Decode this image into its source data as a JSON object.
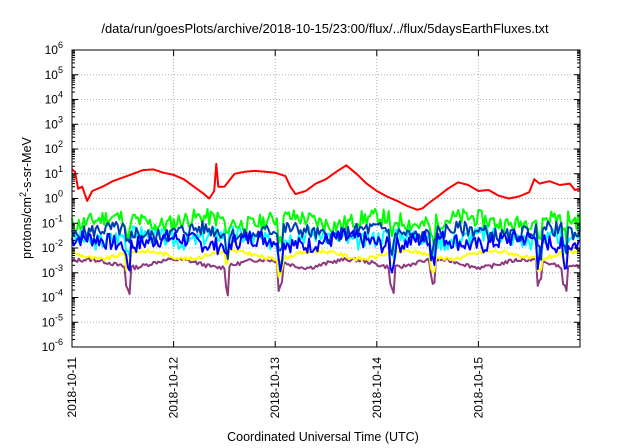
{
  "chart_data": {
    "type": "line",
    "title": "/data/run/goesPlots/archive/2018-10-15/23:00/flux/../flux/5daysEarthFluxes.txt",
    "xlabel": "Coordinated Universal Time (UTC)",
    "ylabel": {
      "pre": "protons/cm",
      "sup": "2",
      "post": "-s-sr-MeV"
    },
    "xlim": [
      "2018-10-11",
      "2018-10-16"
    ],
    "ylim": [
      1e-06,
      1000000.0
    ],
    "yscale": "log",
    "grid": true,
    "xticks": [
      "2018-10-11",
      "2018-10-12",
      "2018-10-13",
      "2018-10-14",
      "2018-10-15"
    ],
    "yticks": [
      {
        "base": "10",
        "exp": "-6"
      },
      {
        "base": "10",
        "exp": "-5"
      },
      {
        "base": "10",
        "exp": "-4"
      },
      {
        "base": "10",
        "exp": "-3"
      },
      {
        "base": "10",
        "exp": "-2"
      },
      {
        "base": "10",
        "exp": "-1"
      },
      {
        "base": "10",
        "exp": "0"
      },
      {
        "base": "10",
        "exp": "1"
      },
      {
        "base": "10",
        "exp": "2"
      },
      {
        "base": "10",
        "exp": "3"
      },
      {
        "base": "10",
        "exp": "4"
      },
      {
        "base": "10",
        "exp": "5"
      },
      {
        "base": "10",
        "exp": "6"
      }
    ],
    "series": [
      {
        "color": "#ff0000",
        "points": [
          [
            0.0,
            15
          ],
          [
            0.03,
            12
          ],
          [
            0.06,
            2.5
          ],
          [
            0.1,
            3
          ],
          [
            0.15,
            0.8
          ],
          [
            0.2,
            2
          ],
          [
            0.3,
            3
          ],
          [
            0.4,
            5
          ],
          [
            0.5,
            7
          ],
          [
            0.6,
            10
          ],
          [
            0.7,
            14
          ],
          [
            0.8,
            15
          ],
          [
            0.9,
            11
          ],
          [
            1.0,
            9
          ],
          [
            1.1,
            6
          ],
          [
            1.2,
            3
          ],
          [
            1.3,
            1.5
          ],
          [
            1.35,
            1.0
          ],
          [
            1.4,
            2
          ],
          [
            1.42,
            25
          ],
          [
            1.44,
            3
          ],
          [
            1.5,
            3
          ],
          [
            1.6,
            10
          ],
          [
            1.7,
            12
          ],
          [
            1.8,
            13
          ],
          [
            1.9,
            12
          ],
          [
            2.0,
            11
          ],
          [
            2.1,
            8
          ],
          [
            2.15,
            3
          ],
          [
            2.2,
            1.5
          ],
          [
            2.3,
            2
          ],
          [
            2.4,
            4
          ],
          [
            2.5,
            6
          ],
          [
            2.6,
            12
          ],
          [
            2.7,
            22
          ],
          [
            2.8,
            10
          ],
          [
            2.9,
            4
          ],
          [
            3.0,
            2
          ],
          [
            3.1,
            1.2
          ],
          [
            3.2,
            0.8
          ],
          [
            3.3,
            0.5
          ],
          [
            3.4,
            0.35
          ],
          [
            3.45,
            0.4
          ],
          [
            3.5,
            0.6
          ],
          [
            3.6,
            1.2
          ],
          [
            3.7,
            2.5
          ],
          [
            3.8,
            4.5
          ],
          [
            3.9,
            3.5
          ],
          [
            4.0,
            2
          ],
          [
            4.1,
            2.2
          ],
          [
            4.2,
            1.3
          ],
          [
            4.3,
            1
          ],
          [
            4.4,
            1.2
          ],
          [
            4.5,
            1.8
          ],
          [
            4.55,
            6
          ],
          [
            4.6,
            4
          ],
          [
            4.7,
            5
          ],
          [
            4.8,
            3.5
          ],
          [
            4.9,
            4
          ],
          [
            4.95,
            2.2
          ],
          [
            5.0,
            2.5
          ]
        ]
      },
      {
        "color": "#00ff00",
        "base": 0.13,
        "amp": 0.35,
        "seed": 11,
        "dips": 0.12
      },
      {
        "color": "#00ffff",
        "base": 0.028,
        "amp": 0.35,
        "seed": 3,
        "dips": 0.2
      },
      {
        "color": "#0000ff",
        "base": 0.019,
        "amp": 0.35,
        "seed": 7,
        "dips": 0.1
      },
      {
        "color": "#003db5",
        "base": 0.045,
        "amp": 0.3,
        "seed": 5,
        "dips": 0.1
      },
      {
        "color": "#ffff00",
        "base": 0.0055,
        "amp": 0.08,
        "seed": 9,
        "dips": 0.2
      },
      {
        "color": "#8b3a7d",
        "base": 0.0025,
        "amp": 0.08,
        "seed": 13,
        "dips": 0.05
      }
    ],
    "dips_at_days": [
      0.55,
      1.52,
      2.05,
      3.15,
      3.55,
      4.6,
      4.85
    ]
  }
}
